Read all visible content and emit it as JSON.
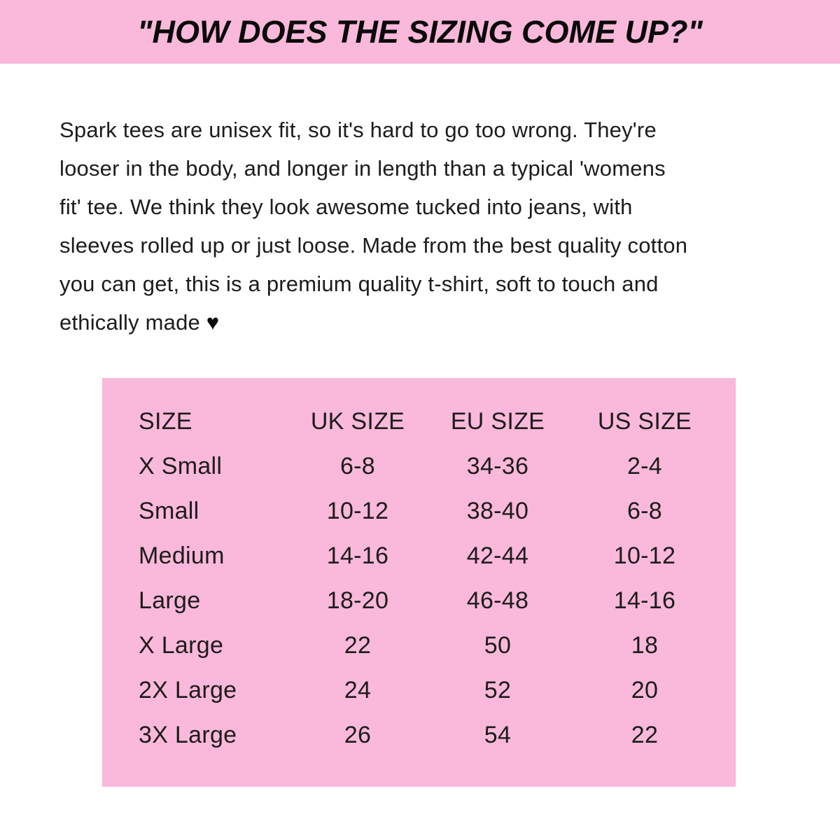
{
  "header": {
    "title": "\"HOW DOES THE SIZING COME UP?\""
  },
  "intro": {
    "lines": [
      "Spark tees are unisex fit, so it's hard to go too wrong. They're",
      "looser in the body, and longer in length than a typical 'womens",
      "fit' tee. We think they look awesome tucked into jeans, with",
      "sleeves rolled up or just loose. Made from the best quality cotton",
      "you can get, this is a premium quality t-shirt, soft to touch and",
      "ethically made"
    ],
    "heart_icon": "♥"
  },
  "size_table": {
    "columns": [
      "SIZE",
      "UK SIZE",
      "EU SIZE",
      "US SIZE"
    ],
    "rows": [
      {
        "size": "X Small",
        "uk": "6-8",
        "eu": "34-36",
        "us": "2-4"
      },
      {
        "size": "Small",
        "uk": "10-12",
        "eu": "38-40",
        "us": "6-8"
      },
      {
        "size": "Medium",
        "uk": "14-16",
        "eu": "42-44",
        "us": "10-12"
      },
      {
        "size": "Large",
        "uk": "18-20",
        "eu": "46-48",
        "us": "14-16"
      },
      {
        "size": "X Large",
        "uk": "22",
        "eu": "50",
        "us": "18"
      },
      {
        "size": "2X Large",
        "uk": "24",
        "eu": "52",
        "us": "20"
      },
      {
        "size": "3X Large",
        "uk": "26",
        "eu": "54",
        "us": "22"
      }
    ]
  },
  "colors": {
    "pink": "#fab8da",
    "text": "#1c1c1c",
    "background": "#ffffff"
  }
}
